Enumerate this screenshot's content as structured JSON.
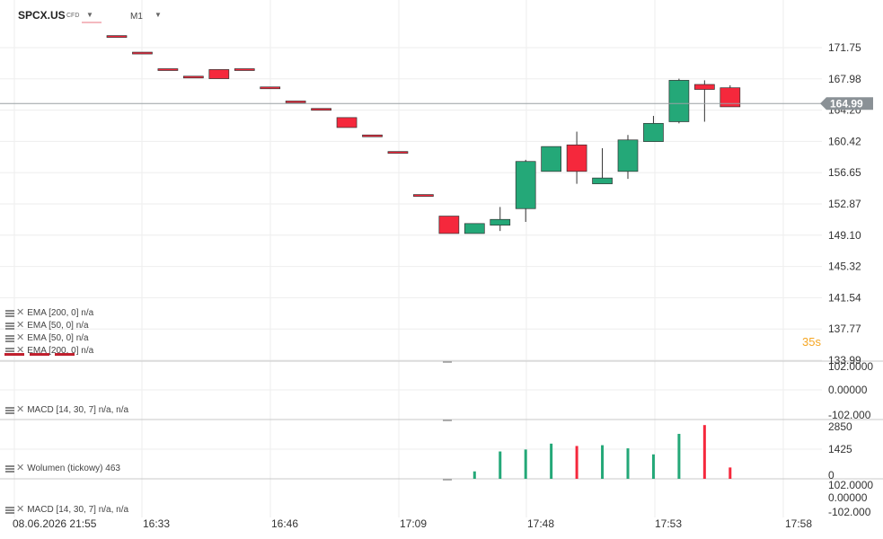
{
  "header": {
    "symbol": "SPCX.US",
    "asset_class": "CFD",
    "timeframe": "M1",
    "caret_icon": "caret-down-icon"
  },
  "indicators": [
    {
      "label": "EMA [200, 0] n/a"
    },
    {
      "label": "EMA [50, 0] n/a"
    },
    {
      "label": "EMA [50, 0] n/a"
    },
    {
      "label": "EMA [200, 0] n/a"
    }
  ],
  "panels": {
    "macd1_label": "MACD [14, 30, 7] n/a, n/a",
    "volume_label": "Wolumen (tickowy) 463",
    "macd2_label": "MACD [14, 30, 7] n/a, n/a"
  },
  "timer": "35s",
  "colors": {
    "up": "#24a878",
    "down": "#f5283c",
    "grid": "#eeeeee",
    "current_price_tag": "#8a9196"
  },
  "current_price": "164.99",
  "x_axis": [
    "08.06.2026 21:55",
    "16:33",
    "16:46",
    "17:09",
    "17:48",
    "17:53",
    "17:58"
  ],
  "chart_data": {
    "type": "candlestick",
    "y_ticks": [
      "171.75",
      "167.98",
      "164.20",
      "160.42",
      "156.65",
      "152.87",
      "149.10",
      "145.32",
      "141.54",
      "137.77",
      "133.99"
    ],
    "ylim": [
      133.99,
      171.75
    ],
    "candles": [
      {
        "o": 173.2,
        "h": 173.2,
        "l": 173.0,
        "c": 173.0
      },
      {
        "o": 171.2,
        "h": 171.2,
        "l": 171.0,
        "c": 171.0
      },
      {
        "o": 169.2,
        "h": 169.2,
        "l": 169.0,
        "c": 169.0
      },
      {
        "o": 168.3,
        "h": 168.3,
        "l": 168.1,
        "c": 168.1
      },
      {
        "o": 169.1,
        "h": 169.1,
        "l": 168.0,
        "c": 168.0
      },
      {
        "o": 169.2,
        "h": 169.2,
        "l": 169.0,
        "c": 169.0
      },
      {
        "o": 167.0,
        "h": 167.0,
        "l": 166.8,
        "c": 166.8
      },
      {
        "o": 165.3,
        "h": 165.3,
        "l": 165.1,
        "c": 165.1
      },
      {
        "o": 164.4,
        "h": 164.4,
        "l": 164.2,
        "c": 164.2
      },
      {
        "o": 163.3,
        "h": 163.3,
        "l": 162.1,
        "c": 162.1
      },
      {
        "o": 161.2,
        "h": 161.2,
        "l": 161.0,
        "c": 161.0
      },
      {
        "o": 159.2,
        "h": 159.2,
        "l": 159.0,
        "c": 159.0
      },
      {
        "o": 154.0,
        "h": 154.0,
        "l": 153.8,
        "c": 153.8
      },
      {
        "o": 151.4,
        "h": 151.4,
        "l": 149.3,
        "c": 149.3
      },
      {
        "o": 149.3,
        "h": 150.5,
        "l": 149.3,
        "c": 150.5
      },
      {
        "o": 150.3,
        "h": 152.5,
        "l": 149.6,
        "c": 151.0
      },
      {
        "o": 152.3,
        "h": 158.2,
        "l": 150.7,
        "c": 158.0
      },
      {
        "o": 156.8,
        "h": 159.8,
        "l": 156.8,
        "c": 159.8
      },
      {
        "o": 160.0,
        "h": 161.6,
        "l": 155.3,
        "c": 156.8
      },
      {
        "o": 155.3,
        "h": 159.6,
        "l": 155.3,
        "c": 156.0
      },
      {
        "o": 156.8,
        "h": 161.2,
        "l": 155.9,
        "c": 160.6
      },
      {
        "o": 160.4,
        "h": 163.5,
        "l": 160.4,
        "c": 162.6
      },
      {
        "o": 162.8,
        "h": 168.0,
        "l": 162.6,
        "c": 167.8
      },
      {
        "o": 167.3,
        "h": 167.8,
        "l": 162.8,
        "c": 166.7
      },
      {
        "o": 166.9,
        "h": 167.2,
        "l": 164.6,
        "c": 164.6
      }
    ],
    "volume": {
      "y_ticks": [
        "2850",
        "1425",
        "0"
      ],
      "ylim": [
        0,
        2850
      ],
      "bars": [
        {
          "v": 380,
          "dir": "up"
        },
        {
          "v": 1400,
          "dir": "up"
        },
        {
          "v": 1500,
          "dir": "up"
        },
        {
          "v": 1800,
          "dir": "up"
        },
        {
          "v": 1680,
          "dir": "down"
        },
        {
          "v": 1720,
          "dir": "up"
        },
        {
          "v": 1560,
          "dir": "up"
        },
        {
          "v": 1250,
          "dir": "up"
        },
        {
          "v": 2300,
          "dir": "up"
        },
        {
          "v": 2750,
          "dir": "down"
        },
        {
          "v": 580,
          "dir": "down"
        }
      ]
    },
    "macd_ticks": [
      "102.0000",
      "0.00000",
      "-102.000"
    ],
    "macd2_ticks": [
      "102.0000",
      "0.00000",
      "-102.000"
    ]
  }
}
